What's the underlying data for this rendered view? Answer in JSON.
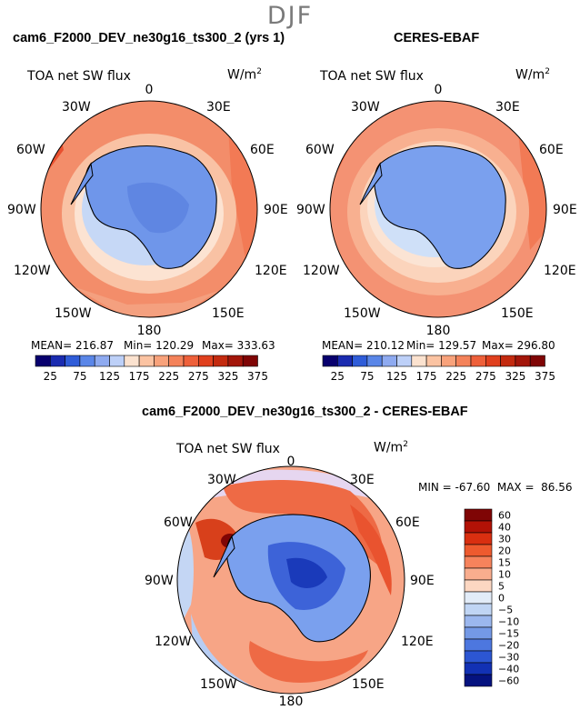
{
  "season": "DJF",
  "panels": {
    "model": {
      "title": "cam6_F2000_DEV_ne30g16_ts300_2 (yrs 1)",
      "variable": "TOA net SW flux",
      "units": "W/m",
      "units_exp": "2",
      "stats": {
        "mean": "MEAN= 216.87",
        "min": "Min= 120.29",
        "max": "Max= 333.63"
      }
    },
    "obs": {
      "title": "CERES-EBAF",
      "variable": "TOA net SW flux",
      "units": "W/m",
      "units_exp": "2",
      "stats": {
        "mean": "MEAN= 210.12",
        "min": "Min= 129.57",
        "max": "Max= 296.80"
      }
    },
    "diff": {
      "title": "cam6_F2000_DEV_ne30g16_ts300_2 - CERES-EBAF",
      "variable": "TOA net SW flux",
      "units": "W/m",
      "units_exp": "2",
      "stats": "MIN = -67.60  MAX =  86.56"
    }
  },
  "lon_labels": {
    "l0": "0",
    "l30e": "30E",
    "l60e": "60E",
    "l90e": "90E",
    "l120e": "120E",
    "l150e": "150E",
    "l180": "180",
    "l150w": "150W",
    "l120w": "120W",
    "l90w": "90W",
    "l60w": "60W",
    "l30w": "30W"
  },
  "abs_colorbar": {
    "colors": [
      "#08006e",
      "#1a2bb0",
      "#2f5cd8",
      "#5a86e8",
      "#8eaaf0",
      "#bdd0f8",
      "#fbe2cf",
      "#fbc3a2",
      "#f8a27b",
      "#f4825a",
      "#ee603a",
      "#e0401e",
      "#c32a0f",
      "#a3160a",
      "#7f0505"
    ],
    "labels": [
      "25",
      "75",
      "125",
      "175",
      "225",
      "275",
      "325",
      "375"
    ]
  },
  "diff_colorbar": {
    "colors": [
      "#7f0505",
      "#b21206",
      "#d92f10",
      "#ee5a2e",
      "#f6835c",
      "#f9ad8e",
      "#fcd7c2",
      "#e2ecf8",
      "#c0d5f4",
      "#9bb7ee",
      "#7499e6",
      "#4d77df",
      "#2c56d2",
      "#1231b4",
      "#05127f"
    ],
    "labels": [
      "60",
      "40",
      "30",
      "20",
      "15",
      "10",
      "5",
      "0",
      "−5",
      "−10",
      "−15",
      "−20",
      "−30",
      "−40",
      "−60"
    ]
  }
}
